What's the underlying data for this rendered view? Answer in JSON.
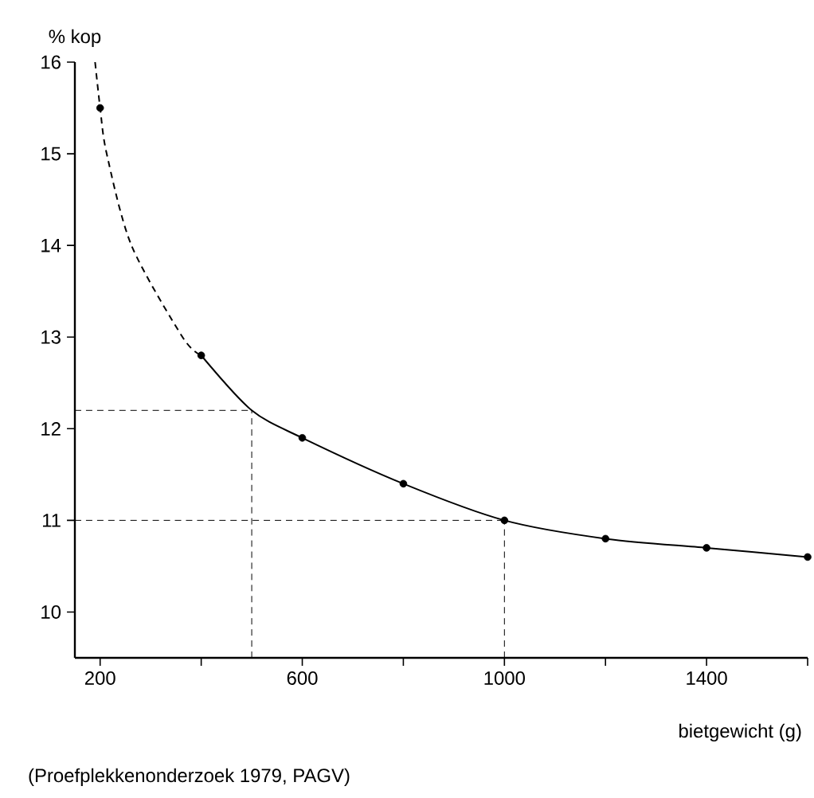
{
  "chart_data": {
    "type": "line",
    "ylabel": "% kop",
    "xlabel": "bietgewicht (g)",
    "annotations": [
      "(Proefplekkenonderzoek 1979, PAGV)"
    ],
    "xlim": [
      150,
      1600
    ],
    "ylim": [
      9.5,
      16
    ],
    "xticks": [
      {
        "value": 200,
        "label": "200"
      },
      {
        "value": 400,
        "label": null
      },
      {
        "value": 600,
        "label": "600"
      },
      {
        "value": 800,
        "label": null
      },
      {
        "value": 1000,
        "label": "1000"
      },
      {
        "value": 1200,
        "label": null
      },
      {
        "value": 1400,
        "label": "1400"
      },
      {
        "value": 1600,
        "label": null
      }
    ],
    "yticks": [
      10,
      11,
      12,
      13,
      14,
      15,
      16
    ],
    "series": [
      {
        "line_style": "dashed",
        "marker": "none",
        "color": "#000000",
        "x": [
          190,
          200,
          213,
          262,
          363,
          400
        ],
        "values": [
          16,
          15.5,
          15,
          14,
          13,
          12.8
        ]
      },
      {
        "line_style": "solid",
        "marker": "none",
        "color": "#000000",
        "x": [
          400,
          500,
          600,
          800,
          1000,
          1200,
          1400,
          1600
        ],
        "values": [
          12.8,
          12.2,
          11.9,
          11.4,
          11.0,
          10.8,
          10.7,
          10.6
        ]
      },
      {
        "type": "scatter",
        "marker": "circle",
        "color": "#000000",
        "x": [
          200,
          400,
          600,
          800,
          1000,
          1200,
          1400,
          1600
        ],
        "values": [
          15.5,
          12.8,
          11.9,
          11.4,
          11.0,
          10.8,
          10.7,
          10.6
        ]
      }
    ],
    "ref_lines": [
      {
        "axis": "y",
        "value": 12.2,
        "line_style": "dashed"
      },
      {
        "axis": "x",
        "value": 500,
        "line_style": "dashed"
      },
      {
        "axis": "y",
        "value": 11,
        "line_style": "dashed"
      },
      {
        "axis": "x",
        "value": 1000,
        "line_style": "dashed"
      }
    ]
  }
}
